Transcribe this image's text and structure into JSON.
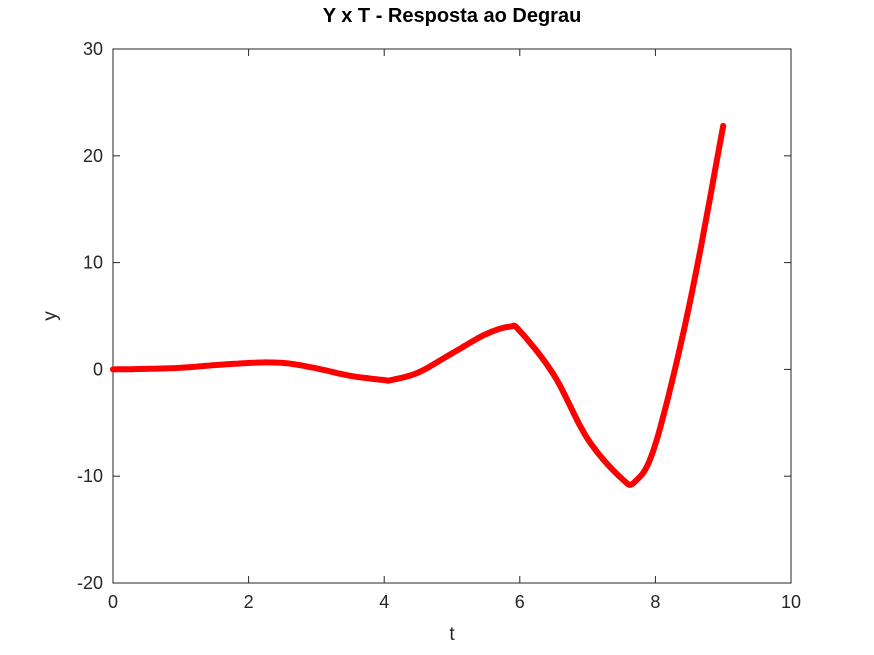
{
  "chart_data": {
    "type": "line",
    "title": "Y x T - Resposta ao Degrau",
    "xlabel": "t",
    "ylabel": "y",
    "xlim": [
      0,
      10
    ],
    "ylim": [
      -20,
      30
    ],
    "x_ticks": [
      0,
      2,
      4,
      6,
      8,
      10
    ],
    "y_ticks": [
      -20,
      -10,
      0,
      10,
      20,
      30
    ],
    "x_tick_labels": [
      "0",
      "2",
      "4",
      "6",
      "8",
      "10"
    ],
    "y_tick_labels": [
      "-20",
      "-10",
      "0",
      "10",
      "20",
      "30"
    ],
    "grid": false,
    "legend": "none",
    "series": [
      {
        "color": "#ff0000",
        "x": [
          0,
          0.5,
          1.0,
          1.5,
          2.0,
          2.3,
          2.6,
          3.0,
          3.5,
          4.0,
          4.1,
          4.5,
          5.0,
          5.5,
          5.85,
          6.0,
          6.5,
          7.0,
          7.5,
          7.7,
          8.0,
          8.5,
          9.0
        ],
        "y": [
          0,
          0.05,
          0.15,
          0.4,
          0.6,
          0.65,
          0.55,
          0.1,
          -0.6,
          -1.0,
          -1.0,
          -0.3,
          1.5,
          3.3,
          4.0,
          3.6,
          -0.5,
          -6.5,
          -10.2,
          -10.5,
          -7.0,
          6.0,
          22.8
        ]
      }
    ]
  }
}
